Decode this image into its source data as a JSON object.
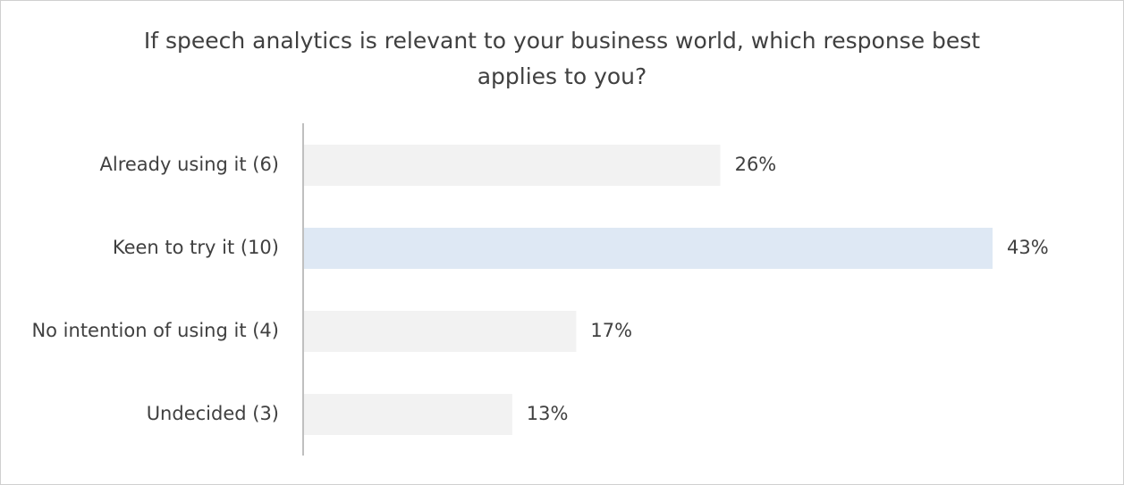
{
  "chart_data": {
    "type": "bar",
    "orientation": "horizontal",
    "title": "If speech analytics is relevant to your business world, which response best applies to you?",
    "categories": [
      "Already using it (6)",
      "Keen to try it (10)",
      "No intention of using it (4)",
      "Undecided (3)"
    ],
    "values": [
      26,
      43,
      17,
      13
    ],
    "value_labels": [
      "26%",
      "43%",
      "17%",
      "13%"
    ],
    "colors": [
      "#f2f2f2",
      "#dee8f4",
      "#f2f2f2",
      "#f2f2f2"
    ],
    "grid": false
  }
}
